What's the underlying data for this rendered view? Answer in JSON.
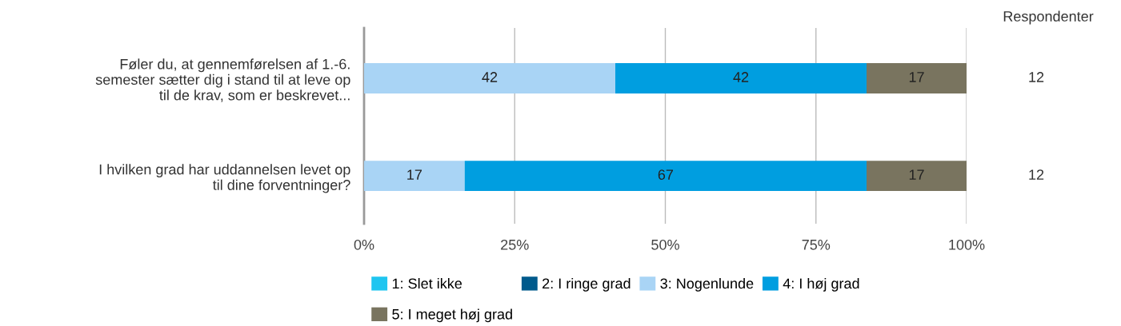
{
  "chart_data": {
    "type": "bar",
    "orientation": "horizontal",
    "stacked": true,
    "categories": [
      "Føler du, at gennemførelsen af 1.-6.\nsemester sætter dig i stand til at leve op\ntil de krav, som er beskrevet...",
      "I hvilken grad har uddannelsen levet op\ntil dine forventninger?"
    ],
    "series": [
      {
        "name": "1: Slet ikke",
        "color": "#1fc5f0",
        "values": [
          0,
          0
        ],
        "value_labels": [
          null,
          null
        ]
      },
      {
        "name": "2: I ringe grad",
        "color": "#005a8c",
        "values": [
          0,
          0
        ],
        "value_labels": [
          null,
          null
        ]
      },
      {
        "name": "3: Nogenlunde",
        "color": "#a9d4f5",
        "values": [
          41.7,
          16.7
        ],
        "value_labels": [
          "42",
          "17"
        ]
      },
      {
        "name": "4: I høj grad",
        "color": "#009ee0",
        "values": [
          41.7,
          66.7
        ],
        "value_labels": [
          "42",
          "67"
        ]
      },
      {
        "name": "5: I meget høj grad",
        "color": "#79745f",
        "values": [
          16.6,
          16.6
        ],
        "value_labels": [
          "17",
          "17"
        ]
      }
    ],
    "xlim": [
      0,
      100
    ],
    "xticks": [
      {
        "value": 0,
        "label": "0%"
      },
      {
        "value": 25,
        "label": "25%"
      },
      {
        "value": 50,
        "label": "50%"
      },
      {
        "value": 75,
        "label": "75%"
      },
      {
        "value": 100,
        "label": "100%"
      }
    ],
    "grid": "x",
    "legend": "bottom",
    "annotations": [
      "Respondenter",
      "12",
      "12"
    ]
  }
}
